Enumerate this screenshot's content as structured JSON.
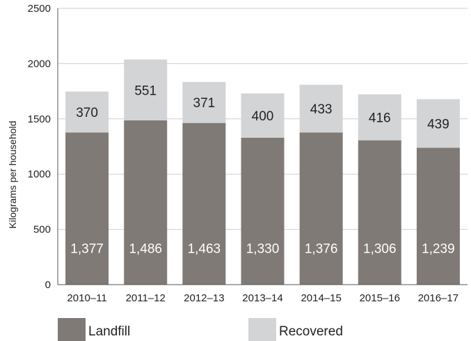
{
  "chart_data": {
    "type": "bar",
    "stacked": true,
    "categories": [
      "2010–11",
      "2011–12",
      "2012–13",
      "2013–14",
      "2014–15",
      "2015–16",
      "2016–17"
    ],
    "series": [
      {
        "name": "Landfill",
        "color": "#7f7a76",
        "label_color": "#ffffff",
        "values": [
          1377,
          1486,
          1463,
          1330,
          1376,
          1306,
          1239
        ],
        "labels": [
          "1,377",
          "1,486",
          "1,463",
          "1,330",
          "1,376",
          "1,306",
          "1,239"
        ]
      },
      {
        "name": "Recovered",
        "color": "#d3d4d6",
        "label_color": "#222222",
        "values": [
          370,
          551,
          371,
          400,
          433,
          416,
          439
        ],
        "labels": [
          "370",
          "551",
          "371",
          "400",
          "433",
          "416",
          "439"
        ]
      }
    ],
    "ylabel": "Kilograms per household",
    "ylim": [
      0,
      2500
    ],
    "yticks": [
      0,
      500,
      1000,
      1500,
      2000,
      2500
    ],
    "yticklabels": [
      "0",
      "500",
      "1000",
      "1500",
      "2000",
      "2500"
    ],
    "grid": true,
    "legend_position": "bottom",
    "gridline_color": "#cfcfcf",
    "axis_color": "#555555"
  }
}
